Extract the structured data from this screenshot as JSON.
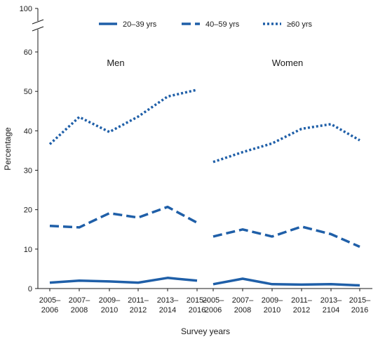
{
  "chart_data": {
    "type": "line",
    "ylabel": "Percentage",
    "xlabel": "Survey years",
    "y_ticks": [
      "0",
      "10",
      "20",
      "30",
      "40",
      "50",
      "60",
      "100"
    ],
    "ylim": [
      0,
      70
    ],
    "axis_break": true,
    "grid": false,
    "legend_position": "top-center",
    "color": "#1f5fa8",
    "series_styles": [
      "solid",
      "long-dash",
      "dotted"
    ],
    "legend": [
      "20–39 yrs",
      "40–59 yrs",
      "≥60 yrs"
    ],
    "panels": [
      {
        "label": "Men",
        "x_labels": [
          [
            "2005–",
            "2006"
          ],
          [
            "2007–",
            "2008"
          ],
          [
            "2009–",
            "2010"
          ],
          [
            "2011–",
            "2012"
          ],
          [
            "2013–",
            "2014"
          ],
          [
            "2015–",
            "2016"
          ]
        ],
        "series": [
          {
            "name": "20–39 yrs",
            "values": [
              1.5,
              2.0,
              1.8,
              1.5,
              2.7,
              2.0
            ]
          },
          {
            "name": "40–59 yrs",
            "values": [
              15.9,
              15.5,
              19.1,
              18.0,
              20.7,
              16.7
            ]
          },
          {
            "name": "≥60 yrs",
            "values": [
              36.6,
              43.5,
              39.7,
              43.6,
              48.7,
              50.4
            ]
          }
        ]
      },
      {
        "label": "Women",
        "x_labels": [
          [
            "2005–",
            "2006"
          ],
          [
            "2007–",
            "2008"
          ],
          [
            "2009–",
            "2010"
          ],
          [
            "2011–",
            "2012"
          ],
          [
            "2013–",
            "2104"
          ],
          [
            "2015–",
            "2016"
          ]
        ],
        "series": [
          {
            "name": "20–39 yrs",
            "values": [
              1.1,
              2.5,
              1.1,
              1.0,
              1.1,
              0.8
            ]
          },
          {
            "name": "40–59 yrs",
            "values": [
              13.2,
              15.0,
              13.2,
              15.7,
              13.8,
              10.6
            ]
          },
          {
            "name": "≥60 yrs",
            "values": [
              32.1,
              34.6,
              36.8,
              40.5,
              41.7,
              37.6
            ]
          }
        ]
      }
    ]
  }
}
